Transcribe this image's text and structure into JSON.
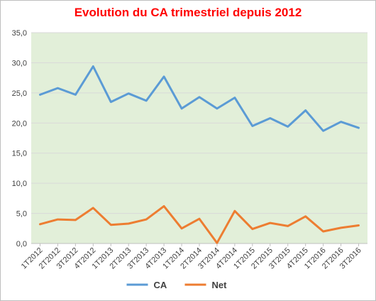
{
  "chart_data": {
    "type": "line",
    "title": "Evolution du CA trimestriel depuis 2012",
    "xlabel": "",
    "ylabel": "",
    "ylim": [
      0,
      35
    ],
    "y_ticks": [
      "0,0",
      "5,0",
      "10,0",
      "15,0",
      "20,0",
      "25,0",
      "30,0",
      "35,0"
    ],
    "y_tick_values": [
      0,
      5,
      10,
      15,
      20,
      25,
      30,
      35
    ],
    "categories": [
      "1T2012",
      "2T2012",
      "3T2012",
      "4T2012",
      "1T2013",
      "2T2013",
      "3T2013",
      "4T2013",
      "1T2014",
      "2T2014",
      "3T2014",
      "4T2014",
      "1T2015",
      "2T2015",
      "3T2015",
      "4T2015",
      "1T2016",
      "2T2016",
      "3T2016"
    ],
    "series": [
      {
        "name": "CA",
        "color": "#5b9bd5",
        "values": [
          24.7,
          25.8,
          24.7,
          29.4,
          23.5,
          24.9,
          23.7,
          27.7,
          22.4,
          24.3,
          22.4,
          24.2,
          19.5,
          20.8,
          19.4,
          22.1,
          18.7,
          20.2,
          19.2
        ]
      },
      {
        "name": "Net",
        "color": "#ed7d31",
        "values": [
          3.2,
          4.0,
          3.9,
          5.9,
          3.1,
          3.3,
          4.0,
          6.2,
          2.5,
          4.1,
          0.1,
          5.4,
          2.4,
          3.4,
          2.9,
          4.5,
          2.0,
          2.6,
          3.0
        ]
      }
    ],
    "grid": true,
    "plot_background": "#e2efd9",
    "legend_position": "bottom"
  }
}
